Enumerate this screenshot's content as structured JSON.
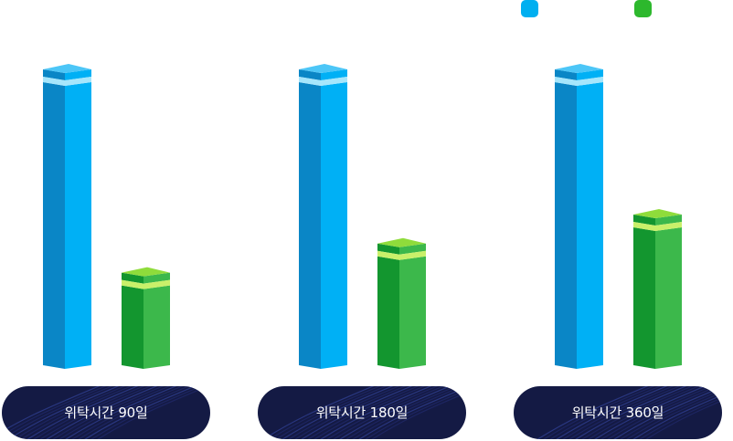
{
  "legend": [
    {
      "name": "",
      "color": "#00aff0"
    },
    {
      "name": "",
      "color": "#2db82d"
    }
  ],
  "chart_data": {
    "type": "bar",
    "categories": [
      "위탁시간 90일",
      "위탁시간 180일",
      "위탁시간 360일"
    ],
    "series": [
      {
        "values": [
          100,
          100,
          100
        ],
        "color": "#00aff0"
      },
      {
        "values": [
          30,
          40,
          50
        ],
        "color": "#2db82d"
      }
    ],
    "ylim": [
      0,
      100
    ],
    "grid": false,
    "legend_position": "top-right"
  }
}
